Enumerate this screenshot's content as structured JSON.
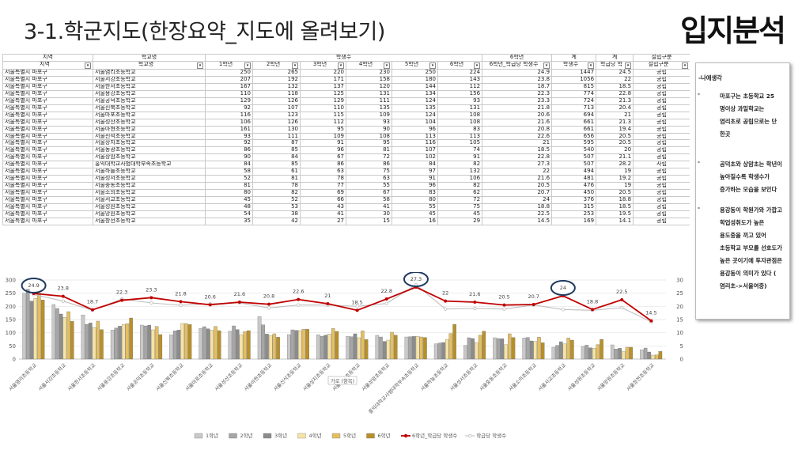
{
  "slide": {
    "title": "3-1.학군지도(한장요약_지도에 올려보기)",
    "brand": "입지분석"
  },
  "table": {
    "group_headers": [
      "지역",
      "학교명",
      "학생수",
      "6학년",
      "계",
      "계",
      "설립구분"
    ],
    "sub_headers": [
      "지역",
      "학교명",
      "1학년",
      "2학년",
      "3학년",
      "4학년",
      "5학년",
      "6학년",
      "6학년_학급당 학생수",
      "학생수",
      "학급당 학",
      "설립구분"
    ],
    "rows": [
      [
        "서울특별시 마포구",
        "서울염리초등학교",
        "250",
        "265",
        "220",
        "230",
        "250",
        "224",
        "24.9",
        "1447",
        "24.5",
        "공립"
      ],
      [
        "서울특별시 마포구",
        "서울서강초등학교",
        "207",
        "192",
        "171",
        "158",
        "180",
        "143",
        "23.8",
        "1056",
        "22",
        "공립"
      ],
      [
        "서울특별시 마포구",
        "서울한서초등학교",
        "167",
        "132",
        "137",
        "120",
        "144",
        "112",
        "18.7",
        "815",
        "18.5",
        "공립"
      ],
      [
        "서울특별시 마포구",
        "서울용강초등학교",
        "110",
        "118",
        "125",
        "131",
        "134",
        "156",
        "22.3",
        "774",
        "22.8",
        "공립"
      ],
      [
        "서울특별시 마포구",
        "서울공덕초등학교",
        "129",
        "126",
        "129",
        "111",
        "124",
        "93",
        "23.3",
        "724",
        "21.3",
        "공립"
      ],
      [
        "서울특별시 마포구",
        "서울신북초등학교",
        "92",
        "107",
        "110",
        "135",
        "135",
        "131",
        "21.8",
        "713",
        "20.4",
        "공립"
      ],
      [
        "서울특별시 마포구",
        "서울마포초등학교",
        "116",
        "123",
        "115",
        "109",
        "124",
        "108",
        "20.6",
        "694",
        "21",
        "공립"
      ],
      [
        "서울특별시 마포구",
        "서울성산초등학교",
        "106",
        "126",
        "112",
        "93",
        "104",
        "108",
        "21.6",
        "661",
        "21.3",
        "공립"
      ],
      [
        "서울특별시 마포구",
        "서울아현초등학교",
        "161",
        "130",
        "95",
        "90",
        "96",
        "83",
        "20.8",
        "661",
        "19.4",
        "공립"
      ],
      [
        "서울특별시 마포구",
        "서울신석초등학교",
        "93",
        "111",
        "109",
        "108",
        "113",
        "113",
        "22.6",
        "656",
        "20.5",
        "공립"
      ],
      [
        "서울특별시 마포구",
        "서울상지초등학교",
        "92",
        "87",
        "91",
        "95",
        "116",
        "105",
        "21",
        "595",
        "20.5",
        "공립"
      ],
      [
        "서울특별시 마포구",
        "서울동광초등학교",
        "86",
        "85",
        "96",
        "81",
        "107",
        "74",
        "18.5",
        "540",
        "20",
        "공립"
      ],
      [
        "서울특별시 마포구",
        "서울상암초등학교",
        "90",
        "84",
        "67",
        "72",
        "102",
        "91",
        "22.8",
        "507",
        "21.1",
        "공립"
      ],
      [
        "서울특별시 마포구",
        "홍익대학교사범대학부속초등학교",
        "84",
        "85",
        "86",
        "86",
        "84",
        "82",
        "27.3",
        "507",
        "28.2",
        "사립"
      ],
      [
        "서울특별시 마포구",
        "서울하늘초등학교",
        "58",
        "61",
        "63",
        "75",
        "97",
        "132",
        "22",
        "494",
        "19",
        "공립"
      ],
      [
        "서울특별시 마포구",
        "서울성서초등학교",
        "52",
        "81",
        "78",
        "63",
        "91",
        "106",
        "21.6",
        "481",
        "19.2",
        "공립"
      ],
      [
        "서울특별시 마포구",
        "서울중동초등학교",
        "81",
        "78",
        "77",
        "55",
        "96",
        "82",
        "20.5",
        "476",
        "19",
        "공립"
      ],
      [
        "서울특별시 마포구",
        "서울소의초등학교",
        "80",
        "82",
        "69",
        "67",
        "83",
        "62",
        "20.7",
        "450",
        "20.5",
        "공립"
      ],
      [
        "서울특별시 마포구",
        "서울서교초등학교",
        "45",
        "52",
        "66",
        "58",
        "80",
        "72",
        "24",
        "376",
        "18.8",
        "공립"
      ],
      [
        "서울특별시 마포구",
        "서울성원초등학교",
        "48",
        "53",
        "43",
        "41",
        "55",
        "75",
        "18.8",
        "315",
        "18.5",
        "공립"
      ],
      [
        "서울특별시 마포구",
        "서울망원초등학교",
        "54",
        "38",
        "41",
        "30",
        "45",
        "45",
        "22.5",
        "253",
        "19.5",
        "공립"
      ],
      [
        "서울특별시 마포구",
        "서울창전초등학교",
        "35",
        "42",
        "27",
        "15",
        "16",
        "29",
        "14.5",
        "169",
        "14.1",
        "공립"
      ]
    ]
  },
  "note": {
    "heading": "-나에생각",
    "bullets": [
      {
        "dash": "-",
        "lines": [
          "마포구는 초등학교 25",
          "명이상 과밀학교는",
          "염리초로 공립으로는 단",
          "한곳"
        ]
      },
      {
        "dash": "-",
        "lines": [
          "공덕초와 상암초는 학년이",
          "높아질수록 학생수가",
          "증가하는 모습을 보인다"
        ]
      },
      {
        "dash": "-",
        "lines": [
          "용강동이 학원가와 가깝고",
          "학업성취도가 높은",
          "용도중을 끼고 있어",
          "초등학교 부모를 선호도가",
          "높은 곳이기에 투자관점은",
          "용강동이 의미가 있다 (",
          "염리초->서울여중)"
        ]
      }
    ]
  },
  "chart_data": {
    "type": "bar",
    "categories": [
      "서울염리초등학교",
      "서울서강초등학교",
      "서울한서초등학교",
      "서울용강초등학교",
      "서울공덕초등학교",
      "서울신북초등학교",
      "서울마포초등학교",
      "서울성산초등학교",
      "서울아현초등학교",
      "서울신석초등학교",
      "서울상지초등학교",
      "서울동광초등학교",
      "서울상암초등학교",
      "홍익대학교사범대학부속초등학교",
      "서울하늘초등학교",
      "서울성서초등학교",
      "서울중동초등학교",
      "서울소의초등학교",
      "서울서교초등학교",
      "서울성원초등학교",
      "서울망원초등학교",
      "서울창전초등학교"
    ],
    "series": [
      {
        "name": "1학년",
        "color": "#c9c9c9",
        "values": [
          250,
          207,
          167,
          110,
          129,
          92,
          116,
          106,
          161,
          93,
          92,
          86,
          90,
          84,
          58,
          52,
          81,
          80,
          45,
          48,
          54,
          35
        ]
      },
      {
        "name": "2학년",
        "color": "#a6a6a6",
        "values": [
          265,
          192,
          132,
          118,
          126,
          107,
          123,
          126,
          130,
          111,
          87,
          85,
          84,
          85,
          61,
          81,
          78,
          82,
          52,
          53,
          38,
          42
        ]
      },
      {
        "name": "3학년",
        "color": "#8c8c8c",
        "values": [
          220,
          171,
          137,
          125,
          129,
          110,
          115,
          112,
          95,
          109,
          91,
          96,
          67,
          86,
          63,
          78,
          77,
          69,
          66,
          43,
          41,
          27
        ]
      },
      {
        "name": "4학년",
        "color": "#f6e3a6",
        "values": [
          230,
          158,
          120,
          131,
          111,
          135,
          109,
          93,
          90,
          108,
          95,
          81,
          72,
          86,
          75,
          63,
          55,
          67,
          58,
          41,
          30,
          15
        ]
      },
      {
        "name": "5학년",
        "color": "#e3bf63",
        "values": [
          250,
          180,
          144,
          134,
          124,
          135,
          124,
          104,
          96,
          113,
          116,
          107,
          102,
          84,
          97,
          91,
          96,
          83,
          80,
          55,
          45,
          16
        ]
      },
      {
        "name": "6학년",
        "color": "#b8902a",
        "values": [
          224,
          143,
          112,
          156,
          93,
          131,
          108,
          108,
          83,
          113,
          105,
          74,
          91,
          82,
          132,
          106,
          82,
          62,
          72,
          75,
          45,
          29
        ]
      },
      {
        "name": "6학년_학급당 학생수",
        "color": "#c00000",
        "axis": "right",
        "values": [
          24.9,
          23.8,
          18.7,
          22.3,
          23.3,
          21.8,
          20.6,
          21.6,
          20.8,
          22.6,
          21,
          18.5,
          22.8,
          27.3,
          22,
          21.6,
          20.5,
          20.7,
          24,
          18.8,
          22.5,
          14.5
        ]
      },
      {
        "name": "학급당 학생수",
        "color": "#bfbfbf",
        "axis": "right",
        "values": [
          24.5,
          22,
          18.5,
          22.8,
          21.3,
          20.4,
          21,
          21.3,
          19.4,
          20.5,
          20.5,
          20,
          21.1,
          28.2,
          19,
          19.2,
          19,
          20.5,
          18.8,
          18.5,
          19.5,
          14.1
        ]
      }
    ],
    "ylim": [
      0,
      300
    ],
    "y2lim": [
      0,
      30
    ],
    "y_ticks": [
      "0",
      "50",
      "100",
      "150",
      "200",
      "250",
      "300"
    ],
    "y2_ticks": [
      "0",
      "5",
      "10",
      "15",
      "20",
      "25",
      "30"
    ],
    "axis_title": "가로 (항목)",
    "highlighted": [
      "24.9",
      "27.3",
      "24"
    ],
    "legend_position": "bottom"
  }
}
